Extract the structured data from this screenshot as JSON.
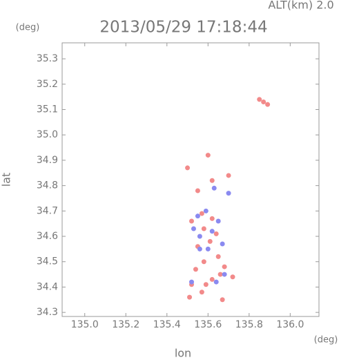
{
  "chart_data": {
    "type": "scatter",
    "title": "2013/05/29 17:18:44",
    "subtitle": "ALT(km) 2.0",
    "x_label": "lon",
    "y_label": "lat",
    "x_unit": "(deg)",
    "y_unit": "(deg)",
    "xlim": [
      134.89,
      136.14
    ],
    "ylim": [
      34.284,
      35.363
    ],
    "xticks": [
      {
        "value": 135.0,
        "label": "135.0"
      },
      135.2,
      135.4,
      135.6,
      135.8,
      {
        "value": 136.0,
        "label": "136.0"
      }
    ],
    "yticks": [
      35.3,
      35.2,
      35.1,
      {
        "value": 35.0,
        "label": "35.0"
      },
      34.9,
      34.8,
      34.7,
      34.6,
      34.5,
      34.4,
      34.3
    ],
    "series": [
      {
        "color": "#f28a8a",
        "x": [
          135.87,
          135.89,
          135.85,
          135.6,
          135.5,
          135.62,
          135.7,
          135.55,
          135.57,
          135.62,
          135.52,
          135.58,
          135.64,
          135.55,
          135.61,
          135.58,
          135.65,
          135.54,
          135.68,
          135.62,
          135.66,
          135.52,
          135.59,
          135.57,
          135.51,
          135.72,
          135.67
        ],
        "y": [
          35.13,
          35.12,
          35.14,
          34.92,
          34.87,
          34.82,
          34.84,
          34.78,
          34.69,
          34.67,
          34.66,
          34.63,
          34.61,
          34.56,
          34.58,
          34.5,
          34.52,
          34.47,
          34.48,
          34.43,
          34.45,
          34.41,
          34.41,
          34.38,
          34.36,
          34.44,
          34.35
        ]
      },
      {
        "color": "#8a8af0",
        "x": [
          135.68,
          135.64,
          135.52,
          135.56,
          135.6,
          135.53,
          135.65,
          135.59,
          135.63,
          135.7,
          135.56,
          135.62,
          135.55,
          135.67
        ],
        "y": [
          34.45,
          34.42,
          34.42,
          34.6,
          34.55,
          34.63,
          34.66,
          34.7,
          34.79,
          34.77,
          34.55,
          34.62,
          34.68,
          34.57
        ]
      }
    ]
  }
}
